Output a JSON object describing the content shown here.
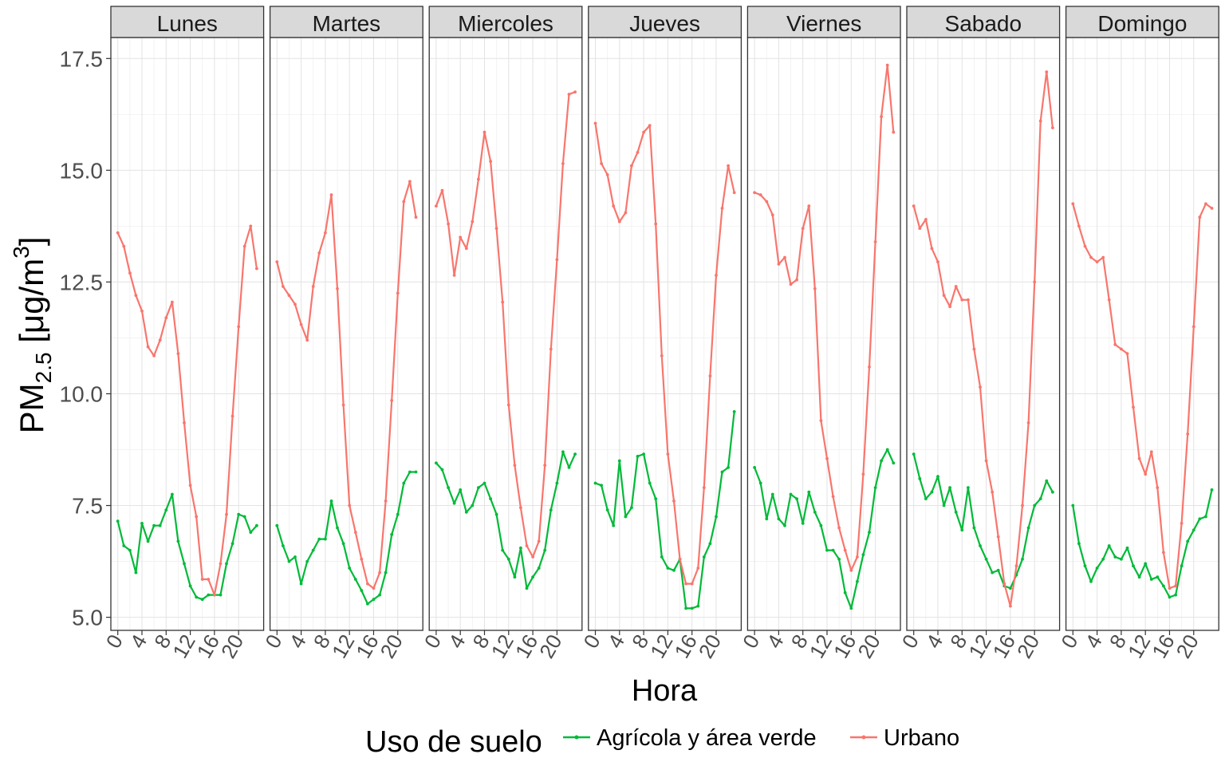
{
  "chart_data": {
    "type": "line",
    "facet_title_bg": "#d9d9d9",
    "ylabel": {
      "main": "PM",
      "subscript": "2.5",
      "units_open": " [μg/m",
      "superscript": "3",
      "units_close": "]"
    },
    "xlabel": "Hora",
    "ylim": [
      4.6,
      18.0
    ],
    "xlim": [
      -1.15,
      24.15
    ],
    "y_ticks": [
      {
        "value": 5.0,
        "label": "5.0"
      },
      {
        "value": 7.5,
        "label": "7.5"
      },
      {
        "value": 10.0,
        "label": "10.0"
      },
      {
        "value": 12.5,
        "label": "12.5"
      },
      {
        "value": 15.0,
        "label": "15.0"
      },
      {
        "value": 17.5,
        "label": "17.5"
      }
    ],
    "x_ticks": [
      {
        "value": 0,
        "label": "0"
      },
      {
        "value": 4,
        "label": "4"
      },
      {
        "value": 8,
        "label": "8"
      },
      {
        "value": 12,
        "label": "12"
      },
      {
        "value": 16,
        "label": "16"
      },
      {
        "value": 20,
        "label": "20"
      }
    ],
    "legend": {
      "title": "Uso de suelo",
      "position": "bottom",
      "items": [
        {
          "label": "Agrícola y área verde",
          "color": "#00ba38"
        },
        {
          "label": "Urbano",
          "color": "#f8766d"
        }
      ]
    },
    "grid": true,
    "x": [
      0,
      1,
      2,
      3,
      4,
      5,
      6,
      7,
      8,
      9,
      10,
      11,
      12,
      13,
      14,
      15,
      16,
      17,
      18,
      19,
      20,
      21,
      22,
      23
    ],
    "facets": [
      {
        "title": "Lunes",
        "series": [
          {
            "name": "Agrícola y área verde",
            "color": "#00ba38",
            "values": [
              7.15,
              6.6,
              6.5,
              6.0,
              7.1,
              6.7,
              7.05,
              7.05,
              7.4,
              7.75,
              6.7,
              6.2,
              5.7,
              5.45,
              5.4,
              5.5,
              5.5,
              5.5,
              6.2,
              6.65,
              7.3,
              7.25,
              6.9,
              7.05
            ]
          },
          {
            "name": "Urbano",
            "color": "#f8766d",
            "values": [
              13.6,
              13.3,
              12.7,
              12.2,
              11.85,
              11.05,
              10.85,
              11.2,
              11.7,
              12.05,
              10.9,
              9.35,
              7.95,
              7.25,
              5.85,
              5.85,
              5.5,
              6.2,
              7.3,
              9.5,
              11.5,
              13.3,
              13.75,
              12.8
            ]
          }
        ]
      },
      {
        "title": "Martes",
        "series": [
          {
            "name": "Agrícola y área verde",
            "color": "#00ba38",
            "values": [
              7.05,
              6.6,
              6.25,
              6.35,
              5.75,
              6.25,
              6.5,
              6.75,
              6.75,
              7.6,
              7.0,
              6.65,
              6.1,
              5.85,
              5.6,
              5.3,
              5.4,
              5.5,
              6.0,
              6.85,
              7.3,
              8.0,
              8.25,
              8.25
            ]
          },
          {
            "name": "Urbano",
            "color": "#f8766d",
            "values": [
              12.95,
              12.4,
              12.2,
              12.0,
              11.55,
              11.2,
              12.4,
              13.15,
              13.6,
              14.45,
              12.35,
              9.75,
              7.5,
              6.9,
              6.3,
              5.75,
              5.65,
              6.0,
              7.6,
              9.85,
              12.25,
              14.3,
              14.75,
              13.95
            ]
          }
        ]
      },
      {
        "title": "Miercoles",
        "series": [
          {
            "name": "Agrícola y área verde",
            "color": "#00ba38",
            "values": [
              8.45,
              8.3,
              7.9,
              7.55,
              7.85,
              7.35,
              7.5,
              7.9,
              8.0,
              7.65,
              7.3,
              6.5,
              6.3,
              5.9,
              6.55,
              5.65,
              5.9,
              6.1,
              6.5,
              7.4,
              8.0,
              8.7,
              8.35,
              8.65
            ]
          },
          {
            "name": "Urbano",
            "color": "#f8766d",
            "values": [
              14.2,
              14.55,
              13.8,
              12.65,
              13.5,
              13.25,
              13.85,
              14.8,
              15.85,
              15.2,
              13.7,
              12.05,
              9.75,
              8.4,
              7.45,
              6.6,
              6.35,
              6.7,
              8.4,
              11.0,
              13.0,
              15.15,
              16.7,
              16.75
            ]
          }
        ]
      },
      {
        "title": "Jueves",
        "series": [
          {
            "name": "Agrícola y área verde",
            "color": "#00ba38",
            "values": [
              8.0,
              7.95,
              7.4,
              7.05,
              8.5,
              7.25,
              7.45,
              8.6,
              8.65,
              8.0,
              7.65,
              6.35,
              6.1,
              6.05,
              6.3,
              5.2,
              5.2,
              5.25,
              6.35,
              6.65,
              7.25,
              8.25,
              8.35,
              9.6
            ]
          },
          {
            "name": "Urbano",
            "color": "#f8766d",
            "values": [
              16.05,
              15.15,
              14.9,
              14.2,
              13.85,
              14.05,
              15.1,
              15.4,
              15.85,
              16.0,
              13.8,
              10.85,
              8.65,
              7.6,
              6.3,
              5.75,
              5.75,
              6.1,
              7.9,
              10.4,
              12.65,
              14.15,
              15.1,
              14.5
            ]
          }
        ]
      },
      {
        "title": "Viernes",
        "series": [
          {
            "name": "Agrícola y área verde",
            "color": "#00ba38",
            "values": [
              8.35,
              8.0,
              7.2,
              7.75,
              7.2,
              7.05,
              7.75,
              7.65,
              7.1,
              7.8,
              7.35,
              7.05,
              6.5,
              6.5,
              6.3,
              5.55,
              5.2,
              5.8,
              6.4,
              6.9,
              7.9,
              8.5,
              8.75,
              8.45
            ]
          },
          {
            "name": "Urbano",
            "color": "#f8766d",
            "values": [
              14.5,
              14.45,
              14.3,
              14.0,
              12.9,
              13.05,
              12.45,
              12.55,
              13.7,
              14.2,
              12.35,
              9.4,
              8.55,
              7.7,
              7.0,
              6.5,
              6.05,
              6.35,
              8.2,
              10.6,
              13.4,
              16.2,
              17.35,
              15.85
            ]
          }
        ]
      },
      {
        "title": "Sabado",
        "series": [
          {
            "name": "Agrícola y área verde",
            "color": "#00ba38",
            "values": [
              8.65,
              8.1,
              7.65,
              7.8,
              8.15,
              7.5,
              7.9,
              7.35,
              6.95,
              7.9,
              7.0,
              6.6,
              6.3,
              6.0,
              6.05,
              5.7,
              5.65,
              5.95,
              6.3,
              7.0,
              7.5,
              7.65,
              8.05,
              7.8
            ]
          },
          {
            "name": "Urbano",
            "color": "#f8766d",
            "values": [
              14.2,
              13.7,
              13.9,
              13.25,
              12.95,
              12.2,
              11.95,
              12.4,
              12.1,
              12.1,
              11.0,
              10.15,
              8.5,
              7.8,
              6.8,
              5.75,
              5.25,
              6.15,
              7.5,
              9.35,
              12.5,
              16.1,
              17.2,
              15.95
            ]
          }
        ]
      },
      {
        "title": "Domingo",
        "series": [
          {
            "name": "Agrícola y área verde",
            "color": "#00ba38",
            "values": [
              7.5,
              6.65,
              6.15,
              5.8,
              6.1,
              6.3,
              6.6,
              6.35,
              6.3,
              6.55,
              6.15,
              5.9,
              6.2,
              5.85,
              5.9,
              5.7,
              5.45,
              5.5,
              6.15,
              6.7,
              6.95,
              7.2,
              7.25,
              7.85
            ]
          },
          {
            "name": "Urbano",
            "color": "#f8766d",
            "values": [
              14.25,
              13.75,
              13.3,
              13.05,
              12.95,
              13.05,
              12.1,
              11.1,
              11.0,
              10.9,
              9.7,
              8.55,
              8.2,
              8.7,
              7.9,
              6.45,
              5.65,
              5.7,
              7.1,
              9.1,
              11.5,
              13.95,
              14.25,
              14.15
            ]
          }
        ]
      }
    ]
  }
}
